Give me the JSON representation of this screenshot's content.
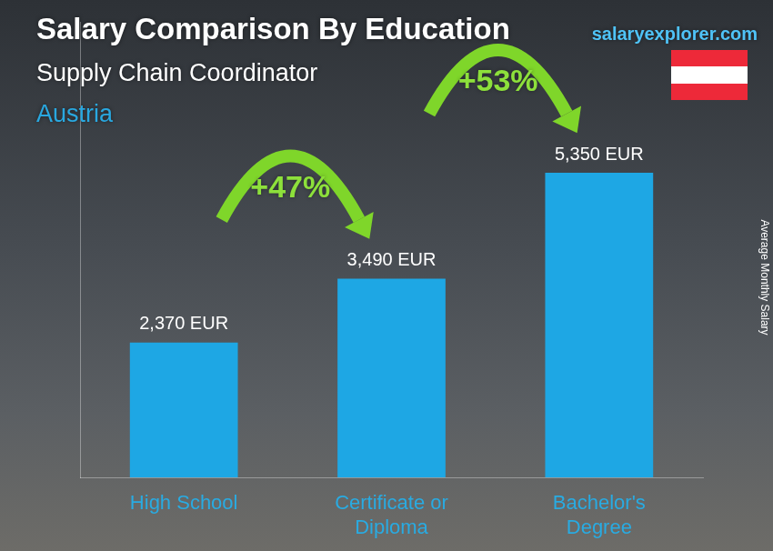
{
  "chart_data": {
    "type": "bar",
    "title": "Salary Comparison By Education",
    "subtitle": "Supply Chain Coordinator",
    "country": "Austria",
    "source": "salaryexplorer.com",
    "y_label": "Average Monthly Salary",
    "categories": [
      "High School",
      "Certificate or Diploma",
      "Bachelor's Degree"
    ],
    "values": [
      2370,
      3490,
      5350
    ],
    "value_labels": [
      "2,370 EUR",
      "3,490 EUR",
      "5,350 EUR"
    ],
    "data_labels": true,
    "annotations": [
      "+47%",
      "+53%"
    ],
    "color": "#1ea7e4",
    "ylim": [
      0,
      8000
    ],
    "grid": false,
    "tick_labels": "x"
  }
}
